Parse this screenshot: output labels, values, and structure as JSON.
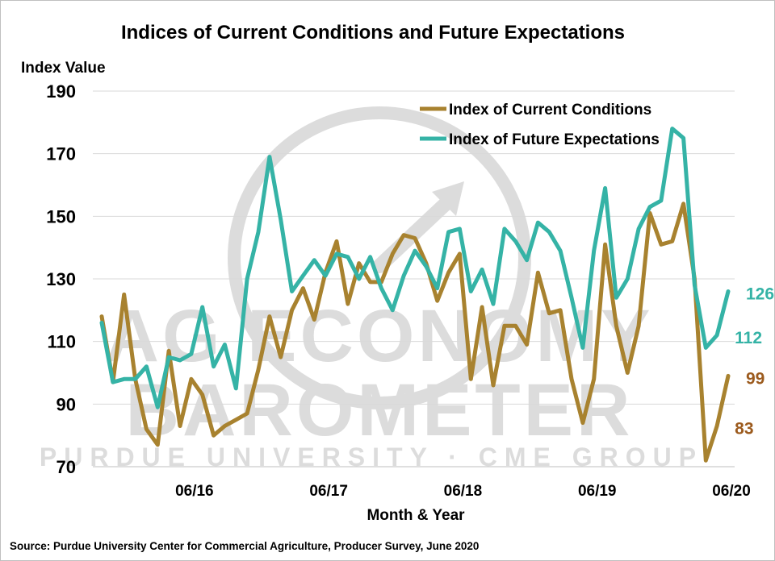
{
  "chart_data": {
    "type": "line",
    "title": "Indices of Current Conditions and Future Expectations",
    "ylabel": "Index Value",
    "xlabel": "Month & Year",
    "source": "Source: Purdue University Center for Commercial Agriculture, Producer Survey, June 2020",
    "ylim": [
      70,
      190
    ],
    "yticks": [
      "190",
      "170",
      "150",
      "130",
      "110",
      "90",
      "70"
    ],
    "ytick_values": [
      190,
      170,
      150,
      130,
      110,
      90,
      70
    ],
    "xticks": [
      {
        "label": "06/16",
        "index": 8
      },
      {
        "label": "06/17",
        "index": 20
      },
      {
        "label": "06/18",
        "index": 32
      },
      {
        "label": "06/19",
        "index": 44
      },
      {
        "label": "06/20",
        "index": 56
      }
    ],
    "grid": "horizontal",
    "legend_position": "top-right",
    "watermark": {
      "line1": "AG ECONOMY",
      "line2": "BAROMETER",
      "line3": "PURDUE UNIVERSITY · CME GROUP"
    },
    "series": [
      {
        "name": "Index of Current Conditions",
        "color": "#a8822f",
        "label_color": "#9c5b1e",
        "values": [
          118,
          97,
          125,
          98,
          82,
          77,
          107,
          83,
          98,
          93,
          80,
          83,
          85,
          87,
          101,
          118,
          105,
          120,
          127,
          117,
          132,
          142,
          122,
          135,
          129,
          129,
          138,
          144,
          143,
          135,
          123,
          132,
          138,
          98,
          121,
          96,
          115,
          115,
          109,
          132,
          119,
          120,
          98,
          84,
          98,
          141,
          115,
          100,
          115,
          151,
          141,
          142,
          154,
          130,
          72,
          83,
          99
        ],
        "end_labels": [
          {
            "index": 55,
            "text": "83"
          },
          {
            "index": 56,
            "text": "99"
          }
        ]
      },
      {
        "name": "Index of Future Expectations",
        "color": "#35b3a6",
        "label_color": "#35b3a6",
        "values": [
          116,
          97,
          98,
          98,
          102,
          89,
          105,
          104,
          106,
          121,
          102,
          109,
          95,
          130,
          145,
          169,
          149,
          126,
          131,
          136,
          131,
          138,
          137,
          130,
          137,
          127,
          120,
          131,
          139,
          134,
          127,
          145,
          146,
          126,
          133,
          122,
          146,
          142,
          136,
          148,
          145,
          139,
          124,
          108,
          139,
          159,
          124,
          130,
          146,
          153,
          155,
          178,
          175,
          128,
          108,
          112,
          126
        ],
        "end_labels": [
          {
            "index": 55,
            "text": "112"
          },
          {
            "index": 56,
            "text": "126"
          }
        ]
      }
    ]
  }
}
